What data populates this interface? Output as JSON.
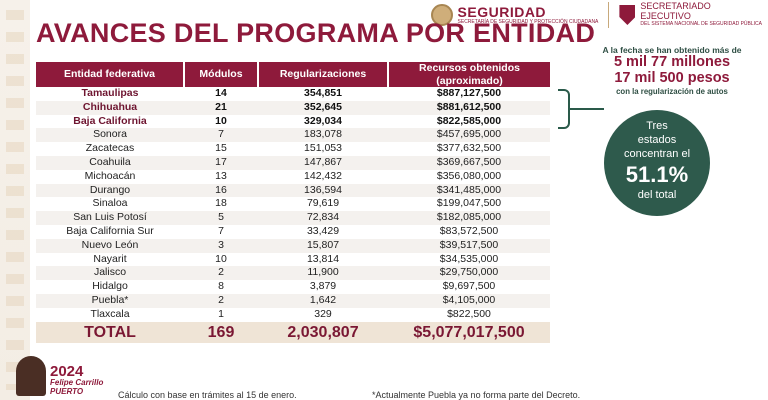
{
  "header": {
    "logo1_main": "SEGURIDAD",
    "logo1_sub": "SECRETARÍA DE SEGURIDAD Y PROTECCIÓN CIUDADANA",
    "logo2_line1": "SECRETARIADO",
    "logo2_line2": "EJECUTIVO",
    "logo2_sub": "DEL SISTEMA NACIONAL DE SEGURIDAD PÚBLICA"
  },
  "title": "AVANCES DEL PROGRAMA POR ENTIDAD",
  "table": {
    "columns": [
      "Entidad federativa",
      "Módulos",
      "Regularizaciones",
      "Recursos obtenidos (aproximado)"
    ],
    "rows": [
      {
        "entidad": "Tamaulipas",
        "modulos": "14",
        "regularizaciones": "354,851",
        "recursos": "$887,127,500"
      },
      {
        "entidad": "Chihuahua",
        "modulos": "21",
        "regularizaciones": "352,645",
        "recursos": "$881,612,500"
      },
      {
        "entidad": "Baja California",
        "modulos": "10",
        "regularizaciones": "329,034",
        "recursos": "$822,585,000"
      },
      {
        "entidad": "Sonora",
        "modulos": "7",
        "regularizaciones": "183,078",
        "recursos": "$457,695,000"
      },
      {
        "entidad": "Zacatecas",
        "modulos": "15",
        "regularizaciones": "151,053",
        "recursos": "$377,632,500"
      },
      {
        "entidad": "Coahuila",
        "modulos": "17",
        "regularizaciones": "147,867",
        "recursos": "$369,667,500"
      },
      {
        "entidad": "Michoacán",
        "modulos": "13",
        "regularizaciones": "142,432",
        "recursos": "$356,080,000"
      },
      {
        "entidad": "Durango",
        "modulos": "16",
        "regularizaciones": "136,594",
        "recursos": "$341,485,000"
      },
      {
        "entidad": "Sinaloa",
        "modulos": "18",
        "regularizaciones": "79,619",
        "recursos": "$199,047,500"
      },
      {
        "entidad": "San Luis Potosí",
        "modulos": "5",
        "regularizaciones": "72,834",
        "recursos": "$182,085,000"
      },
      {
        "entidad": "Baja California Sur",
        "modulos": "7",
        "regularizaciones": "33,429",
        "recursos": "$83,572,500"
      },
      {
        "entidad": "Nuevo León",
        "modulos": "3",
        "regularizaciones": "15,807",
        "recursos": "$39,517,500"
      },
      {
        "entidad": "Nayarit",
        "modulos": "10",
        "regularizaciones": "13,814",
        "recursos": "$34,535,000"
      },
      {
        "entidad": "Jalisco",
        "modulos": "2",
        "regularizaciones": "11,900",
        "recursos": "$29,750,000"
      },
      {
        "entidad": "Hidalgo",
        "modulos": "8",
        "regularizaciones": "3,879",
        "recursos": "$9,697,500"
      },
      {
        "entidad": "Puebla*",
        "modulos": "2",
        "regularizaciones": "1,642",
        "recursos": "$4,105,000"
      },
      {
        "entidad": "Tlaxcala",
        "modulos": "1",
        "regularizaciones": "329",
        "recursos": "$822,500"
      }
    ],
    "total": {
      "entidad": "TOTAL",
      "modulos": "169",
      "regularizaciones": "2,030,807",
      "recursos": "$5,077,017,500"
    }
  },
  "info": {
    "line1": "A la fecha se han obtenido más de",
    "line2": "5 mil 77 millones",
    "line3": "17 mil 500 pesos",
    "line4": "con la regularización de autos"
  },
  "circle": {
    "line1": "Tres",
    "line2": "estados",
    "line3": "concentran el",
    "percent": "51.1%",
    "line4": "del total"
  },
  "footer": {
    "year": "2024",
    "name_line1": "Felipe Carrillo",
    "name_line2": "PUERTO",
    "note_left": "Cálculo con base en trámites al 15 de enero.",
    "note_right": "*Actualmente Puebla ya no forma parte del Decreto."
  }
}
